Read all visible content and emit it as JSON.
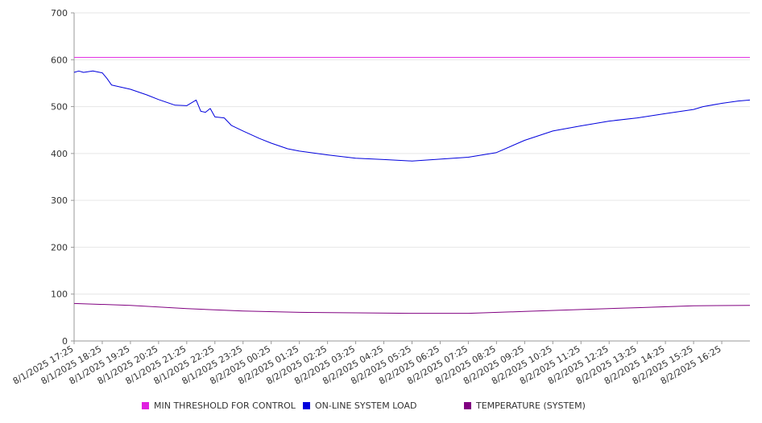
{
  "chart_data": {
    "type": "line",
    "title": "",
    "xlabel": "",
    "ylabel": "",
    "ylim": [
      0,
      700
    ],
    "yticks": [
      0,
      100,
      200,
      300,
      400,
      500,
      600,
      700
    ],
    "grid": true,
    "legend_position": "bottom",
    "x_tick_labels": [
      "8/1/2025 17:25",
      "8/1/2025 18:25",
      "8/1/2025 19:25",
      "8/1/2025 20:25",
      "8/1/2025 21:25",
      "8/1/2025 22:25",
      "8/1/2025 23:25",
      "8/2/2025 00:25",
      "8/2/2025 01:25",
      "8/2/2025 02:25",
      "8/2/2025 03:25",
      "8/2/2025 04:25",
      "8/2/2025 05:25",
      "8/2/2025 06:25",
      "8/2/2025 07:25",
      "8/2/2025 08:25",
      "8/2/2025 09:25",
      "8/2/2025 10:25",
      "8/2/2025 11:25",
      "8/2/2025 12:25",
      "8/2/2025 13:25",
      "8/2/2025 14:25",
      "8/2/2025 15:25",
      "8/2/2025 16:25"
    ],
    "x_end": "8/2/2025 17:25",
    "series": [
      {
        "name": "MIN THRESHOLD FOR CONTROL",
        "color": "#e020e0",
        "points": [
          [
            "8/1/2025 17:25",
            605
          ],
          [
            "8/2/2025 17:25",
            605
          ]
        ]
      },
      {
        "name": "ON-LINE SYSTEM LOAD",
        "color": "#0000dd",
        "points": [
          [
            "8/1/2025 17:25",
            573
          ],
          [
            "8/1/2025 17:35",
            576
          ],
          [
            "8/1/2025 17:45",
            573
          ],
          [
            "8/1/2025 18:05",
            576
          ],
          [
            "8/1/2025 18:25",
            572
          ],
          [
            "8/1/2025 18:35",
            560
          ],
          [
            "8/1/2025 18:45",
            546
          ],
          [
            "8/1/2025 19:25",
            537
          ],
          [
            "8/1/2025 20:00",
            525
          ],
          [
            "8/1/2025 20:25",
            515
          ],
          [
            "8/1/2025 21:00",
            503
          ],
          [
            "8/1/2025 21:25",
            502
          ],
          [
            "8/1/2025 21:45",
            514
          ],
          [
            "8/1/2025 21:55",
            490
          ],
          [
            "8/1/2025 22:05",
            488
          ],
          [
            "8/1/2025 22:15",
            496
          ],
          [
            "8/1/2025 22:25",
            478
          ],
          [
            "8/1/2025 22:45",
            476
          ],
          [
            "8/1/2025 23:00",
            460
          ],
          [
            "8/1/2025 23:25",
            448
          ],
          [
            "8/2/2025 00:00",
            432
          ],
          [
            "8/2/2025 00:25",
            422
          ],
          [
            "8/2/2025 01:00",
            410
          ],
          [
            "8/2/2025 01:25",
            405
          ],
          [
            "8/2/2025 02:25",
            397
          ],
          [
            "8/2/2025 03:25",
            390
          ],
          [
            "8/2/2025 04:25",
            387
          ],
          [
            "8/2/2025 05:25",
            384
          ],
          [
            "8/2/2025 06:25",
            388
          ],
          [
            "8/2/2025 07:25",
            392
          ],
          [
            "8/2/2025 08:25",
            402
          ],
          [
            "8/2/2025 09:25",
            428
          ],
          [
            "8/2/2025 10:25",
            448
          ],
          [
            "8/2/2025 11:25",
            459
          ],
          [
            "8/2/2025 12:25",
            469
          ],
          [
            "8/2/2025 13:25",
            476
          ],
          [
            "8/2/2025 14:25",
            485
          ],
          [
            "8/2/2025 15:25",
            494
          ],
          [
            "8/2/2025 15:45",
            500
          ],
          [
            "8/2/2025 16:25",
            507
          ],
          [
            "8/2/2025 17:00",
            512
          ],
          [
            "8/2/2025 17:25",
            514
          ]
        ]
      },
      {
        "name": "TEMPERATURE (SYSTEM)",
        "color": "#800080",
        "points": [
          [
            "8/1/2025 17:25",
            80
          ],
          [
            "8/1/2025 19:25",
            76
          ],
          [
            "8/1/2025 21:25",
            69
          ],
          [
            "8/1/2025 23:25",
            64
          ],
          [
            "8/2/2025 01:25",
            61
          ],
          [
            "8/2/2025 03:25",
            60
          ],
          [
            "8/2/2025 05:25",
            59
          ],
          [
            "8/2/2025 07:25",
            59
          ],
          [
            "8/2/2025 09:25",
            63
          ],
          [
            "8/2/2025 11:25",
            67
          ],
          [
            "8/2/2025 13:25",
            71
          ],
          [
            "8/2/2025 15:25",
            75
          ],
          [
            "8/2/2025 17:25",
            76
          ]
        ]
      }
    ]
  }
}
